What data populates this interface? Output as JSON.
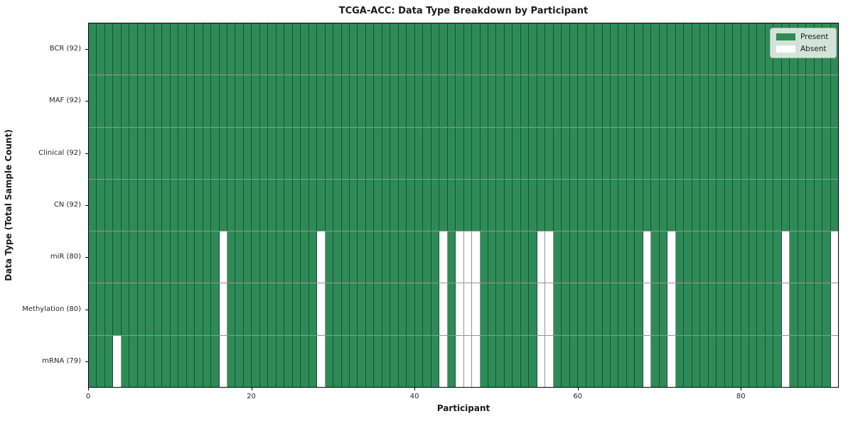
{
  "title": "TCGA-ACC: Data Type Breakdown by Participant",
  "xlabel": "Participant",
  "ylabel": "Data Type (Total Sample Count)",
  "legend": [
    {
      "label": "Present",
      "color": "#2e8b57"
    },
    {
      "label": "Absent",
      "color": "#ffffff"
    }
  ],
  "colors": {
    "present": "#2e8b57",
    "absent": "#ffffff",
    "grid_line": "rgba(0,0,0,0.42)",
    "axis": "#000000"
  },
  "chart_data": {
    "type": "heatmap",
    "title": "TCGA-ACC: Data Type Breakdown by Participant",
    "xlabel": "Participant",
    "ylabel": "Data Type (Total Sample Count)",
    "legend_entries": [
      "Present",
      "Absent"
    ],
    "legend_position": "upper right",
    "n_participants": 92,
    "x_ticks": [
      0,
      20,
      40,
      60,
      80
    ],
    "xlim": [
      0,
      92
    ],
    "cell_values": "1 = present (green), 0 = absent (white)",
    "rows": [
      {
        "label": "BCR (92)",
        "data_type": "BCR",
        "present_count": 92,
        "absent_participants": []
      },
      {
        "label": "MAF (92)",
        "data_type": "MAF",
        "present_count": 92,
        "absent_participants": []
      },
      {
        "label": "Clinical (92)",
        "data_type": "Clinical",
        "present_count": 92,
        "absent_participants": []
      },
      {
        "label": "CN (92)",
        "data_type": "CN",
        "present_count": 92,
        "absent_participants": []
      },
      {
        "label": "miR (80)",
        "data_type": "miR",
        "present_count": 80,
        "absent_participants": [
          16,
          28,
          43,
          45,
          46,
          47,
          55,
          56,
          68,
          71,
          85,
          91
        ]
      },
      {
        "label": "Methylation (80)",
        "data_type": "Methylation",
        "present_count": 80,
        "absent_participants": [
          16,
          28,
          43,
          45,
          46,
          47,
          55,
          56,
          68,
          71,
          85,
          91
        ]
      },
      {
        "label": "mRNA (79)",
        "data_type": "mRNA",
        "present_count": 79,
        "absent_participants": [
          3,
          16,
          28,
          43,
          45,
          46,
          47,
          55,
          56,
          68,
          71,
          85,
          91
        ]
      }
    ]
  }
}
